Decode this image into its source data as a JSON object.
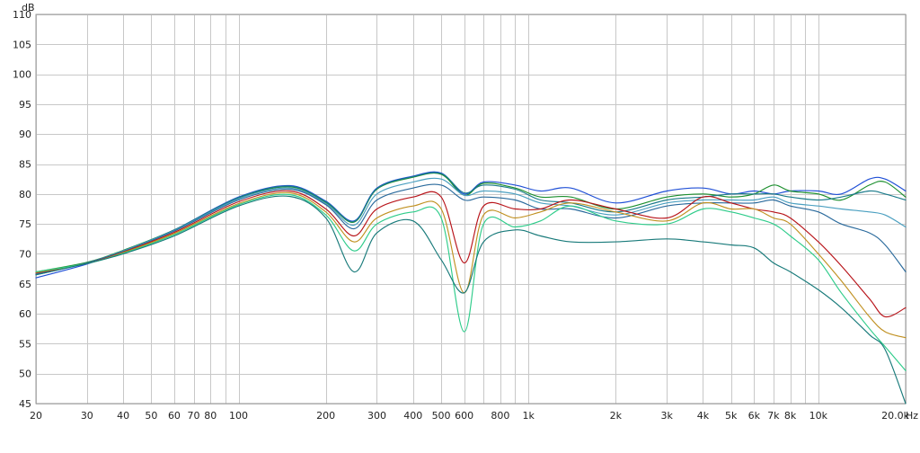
{
  "chart_data": {
    "type": "line",
    "title": "",
    "xlabel": "",
    "ylabel": "",
    "x_unit": "Hz",
    "y_unit": "dB",
    "x_scale": "log",
    "xlim": [
      20,
      20000
    ],
    "ylim": [
      45,
      110
    ],
    "grid": true,
    "legend": "none",
    "y_ticks": [
      45,
      50,
      55,
      60,
      65,
      70,
      75,
      80,
      85,
      90,
      95,
      100,
      105,
      110
    ],
    "y_tick_labels": [
      "45",
      "50",
      "55",
      "60",
      "65",
      "70",
      "75",
      "80",
      "85",
      "90",
      "95",
      "100",
      "105",
      "110"
    ],
    "x_ticks": [
      20,
      30,
      40,
      50,
      60,
      70,
      80,
      100,
      200,
      300,
      400,
      500,
      600,
      800,
      1000,
      2000,
      3000,
      4000,
      5000,
      6000,
      7000,
      8000,
      10000,
      20000
    ],
    "x_tick_labels": [
      "20",
      "30",
      "40",
      "50",
      "60",
      "70",
      "80",
      "100",
      "200",
      "300",
      "400",
      "500",
      "600",
      "800",
      "1k",
      "2k",
      "3k",
      "4k",
      "5k",
      "6k",
      "7k",
      "8k",
      "10k",
      "20.0k"
    ],
    "x_minor_ticks": [
      90,
      700,
      900,
      9000
    ],
    "x": [
      20,
      30,
      40,
      60,
      100,
      150,
      200,
      250,
      300,
      400,
      500,
      600,
      700,
      900,
      1100,
      1400,
      2000,
      3000,
      4000,
      5000,
      6000,
      7000,
      8000,
      10000,
      12000,
      15000,
      17000,
      20000
    ],
    "series": [
      {
        "color": "#1f4fd6",
        "values": [
          66.0,
          68.3,
          70.4,
          74.0,
          79.5,
          81.4,
          78.8,
          75.5,
          81.0,
          83.0,
          83.5,
          80.0,
          82.0,
          81.5,
          80.5,
          81.0,
          78.5,
          80.5,
          81.0,
          80.0,
          80.5,
          80.0,
          80.5,
          80.5,
          80.0,
          82.5,
          82.5,
          80.5
        ]
      },
      {
        "color": "#1c8f2e",
        "values": [
          67.0,
          68.6,
          70.6,
          74.0,
          79.3,
          81.2,
          78.6,
          75.3,
          80.8,
          82.8,
          83.3,
          79.8,
          81.8,
          81.0,
          79.5,
          79.5,
          77.5,
          79.5,
          80.0,
          79.5,
          80.0,
          81.5,
          80.5,
          80.0,
          79.0,
          81.5,
          82.0,
          79.5
        ]
      },
      {
        "color": "#1a7a8a",
        "values": [
          66.5,
          68.5,
          70.5,
          74.0,
          79.4,
          81.3,
          78.7,
          75.4,
          80.9,
          82.9,
          83.4,
          80.2,
          81.5,
          80.8,
          79.0,
          78.5,
          77.0,
          79.0,
          79.5,
          80.0,
          80.0,
          80.0,
          79.5,
          79.0,
          79.5,
          80.5,
          80.0,
          79.0
        ]
      },
      {
        "color": "#4a9fc0",
        "values": [
          66.7,
          68.5,
          70.5,
          73.9,
          79.2,
          81.0,
          78.4,
          74.8,
          80.0,
          82.0,
          82.5,
          79.8,
          80.5,
          80.0,
          78.5,
          78.0,
          76.5,
          78.5,
          79.0,
          79.0,
          79.0,
          79.5,
          78.5,
          78.0,
          77.5,
          77.0,
          76.5,
          74.5
        ]
      },
      {
        "color": "#2a6a9c",
        "values": [
          66.6,
          68.5,
          70.4,
          73.8,
          79.0,
          80.8,
          78.2,
          74.2,
          79.0,
          81.0,
          81.5,
          79.0,
          79.5,
          79.0,
          77.5,
          77.5,
          76.0,
          78.0,
          78.5,
          78.5,
          78.5,
          79.0,
          78.0,
          77.0,
          75.0,
          73.5,
          71.5,
          67.0
        ]
      },
      {
        "color": "#b8141a",
        "values": [
          66.8,
          68.4,
          70.3,
          73.6,
          78.7,
          80.5,
          77.5,
          73.0,
          77.5,
          79.5,
          79.5,
          68.5,
          78.0,
          77.5,
          77.5,
          79.0,
          77.5,
          76.0,
          79.5,
          78.5,
          77.5,
          77.0,
          76.0,
          72.0,
          68.0,
          62.5,
          59.5,
          61.0
        ]
      },
      {
        "color": "#c09020",
        "values": [
          66.9,
          68.4,
          70.2,
          73.4,
          78.4,
          80.2,
          77.0,
          72.0,
          76.0,
          78.0,
          77.5,
          63.5,
          76.5,
          76.0,
          77.0,
          78.5,
          77.0,
          75.5,
          78.5,
          77.5,
          77.5,
          76.0,
          75.0,
          70.0,
          65.5,
          59.5,
          57.0,
          56.0
        ]
      },
      {
        "color": "#2ecc8a",
        "values": [
          67.0,
          68.4,
          70.1,
          73.2,
          78.2,
          79.9,
          76.5,
          70.5,
          75.0,
          77.0,
          76.0,
          57.0,
          75.0,
          74.5,
          75.5,
          78.0,
          75.5,
          75.0,
          77.5,
          77.0,
          76.0,
          75.0,
          73.0,
          69.0,
          63.5,
          57.5,
          54.5,
          50.5
        ]
      },
      {
        "color": "#187a7a",
        "values": [
          66.5,
          68.4,
          70.0,
          73.0,
          78.0,
          79.6,
          76.0,
          67.0,
          73.5,
          75.5,
          69.0,
          63.5,
          72.0,
          74.0,
          73.0,
          72.0,
          72.0,
          72.5,
          72.0,
          71.5,
          71.0,
          68.5,
          67.0,
          64.0,
          61.0,
          56.5,
          54.0,
          45.0
        ]
      }
    ]
  }
}
